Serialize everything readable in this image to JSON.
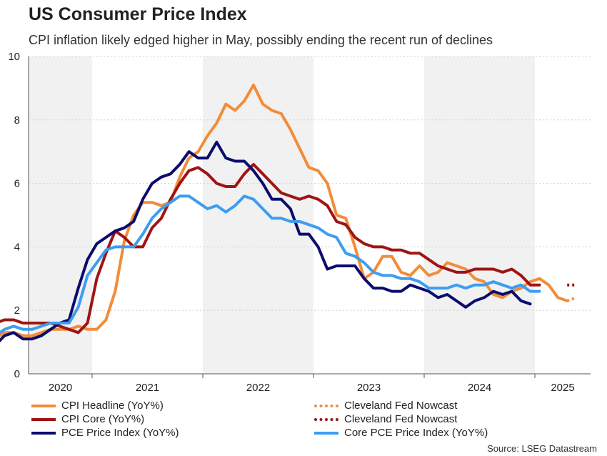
{
  "title": "US Consumer Price Index",
  "subtitle": "CPI inflation likely edged higher in May, possibly ending the recent run of declines",
  "source": "Source: LSEG Datastream",
  "legend": [
    {
      "label": "CPI Headline (YoY%)",
      "color": "#f28c38",
      "style": "solid"
    },
    {
      "label": "CPI Core (YoY%)",
      "color": "#a01414",
      "style": "solid"
    },
    {
      "label": "PCE Price Index (YoY%)",
      "color": "#0c0c6e",
      "style": "solid"
    },
    {
      "label": "Cleveland Fed Nowcast",
      "color": "#f28c38",
      "style": "dotted"
    },
    {
      "label": "Cleveland Fed Nowcast",
      "color": "#a01414",
      "style": "dotted"
    },
    {
      "label": "Core PCE Price Index (YoY%)",
      "color": "#3d9df0",
      "style": "solid"
    }
  ],
  "chart_data": {
    "type": "line",
    "ylim": [
      0,
      10
    ],
    "yticks": [
      0,
      2,
      4,
      6,
      8,
      10
    ],
    "x_start": "2020-01",
    "years": [
      "2020",
      "2021",
      "2022",
      "2023",
      "2024",
      "2025"
    ],
    "shaded_years": [
      "2020",
      "2022",
      "2024"
    ],
    "grid": "horizontal dotted",
    "series": [
      {
        "name": "CPI Headline (YoY%)",
        "color": "#f28c38",
        "start": "2020-01",
        "values": [
          0.7,
          1.1,
          1.3,
          1.3,
          1.2,
          1.2,
          1.3,
          1.4,
          1.4,
          1.4,
          1.5,
          1.4,
          1.4,
          1.7,
          2.6,
          4.2,
          5.0,
          5.4,
          5.4,
          5.3,
          5.4,
          6.2,
          6.8,
          7.0,
          7.5,
          7.9,
          8.5,
          8.3,
          8.6,
          9.1,
          8.5,
          8.3,
          8.2,
          7.7,
          7.1,
          6.5,
          6.4,
          6.0,
          5.0,
          4.9,
          4.0,
          3.0,
          3.2,
          3.7,
          3.7,
          3.2,
          3.1,
          3.4,
          3.1,
          3.2,
          3.5,
          3.4,
          3.3,
          3.0,
          2.9,
          2.5,
          2.4,
          2.6,
          2.7,
          2.9,
          3.0,
          2.8,
          2.4,
          2.3
        ]
      },
      {
        "name": "CPI Core (YoY%)",
        "color": "#a01414",
        "start": "2020-01",
        "values": [
          1.2,
          1.6,
          1.7,
          1.7,
          1.6,
          1.6,
          1.6,
          1.6,
          1.5,
          1.4,
          1.3,
          1.6,
          3.0,
          3.8,
          4.5,
          4.3,
          4.0,
          4.0,
          4.6,
          4.9,
          5.5,
          6.0,
          6.4,
          6.5,
          6.3,
          6.0,
          5.9,
          5.9,
          6.3,
          6.6,
          6.3,
          6.0,
          5.7,
          5.6,
          5.5,
          5.6,
          5.5,
          5.3,
          4.8,
          4.7,
          4.3,
          4.1,
          4.0,
          4.0,
          3.9,
          3.9,
          3.8,
          3.8,
          3.6,
          3.4,
          3.3,
          3.2,
          3.2,
          3.3,
          3.3,
          3.3,
          3.2,
          3.3,
          3.1,
          2.8,
          2.8
        ]
      },
      {
        "name": "PCE Price Index (YoY%)",
        "color": "#0c0c6e",
        "start": "2020-01",
        "values": [
          0.7,
          0.9,
          1.2,
          1.3,
          1.1,
          1.1,
          1.2,
          1.4,
          1.6,
          1.7,
          2.7,
          3.6,
          4.1,
          4.3,
          4.5,
          4.6,
          4.8,
          5.5,
          6.0,
          6.2,
          6.3,
          6.6,
          7.0,
          6.8,
          6.8,
          7.3,
          6.8,
          6.7,
          6.7,
          6.4,
          6.0,
          5.5,
          5.5,
          5.2,
          4.4,
          4.4,
          4.0,
          3.3,
          3.4,
          3.4,
          3.4,
          3.0,
          2.7,
          2.7,
          2.6,
          2.6,
          2.8,
          2.7,
          2.6,
          2.4,
          2.5,
          2.3,
          2.1,
          2.3,
          2.4,
          2.6,
          2.5,
          2.6,
          2.3,
          2.2
        ]
      },
      {
        "name": "Core PCE Price Index (YoY%)",
        "color": "#3d9df0",
        "start": "2020-01",
        "values": [
          1.0,
          1.2,
          1.4,
          1.5,
          1.4,
          1.4,
          1.5,
          1.6,
          1.6,
          1.6,
          2.1,
          3.1,
          3.5,
          3.9,
          4.0,
          4.0,
          4.0,
          4.4,
          4.9,
          5.2,
          5.4,
          5.6,
          5.6,
          5.4,
          5.2,
          5.3,
          5.1,
          5.3,
          5.6,
          5.5,
          5.2,
          4.9,
          4.9,
          4.8,
          4.8,
          4.7,
          4.6,
          4.4,
          4.3,
          3.8,
          3.7,
          3.5,
          3.2,
          3.1,
          3.1,
          3.0,
          3.0,
          2.9,
          2.7,
          2.7,
          2.7,
          2.8,
          2.7,
          2.8,
          2.8,
          2.9,
          2.8,
          2.7,
          2.8,
          2.6,
          2.6
        ]
      },
      {
        "name": "Cleveland Fed Nowcast",
        "color": "#f28c38",
        "style": "dotted",
        "start": "2025-04",
        "values": [
          2.3,
          2.4
        ]
      },
      {
        "name": "Cleveland Fed Nowcast",
        "color": "#a01414",
        "style": "dotted",
        "start": "2025-04",
        "values": [
          2.8,
          2.8
        ]
      }
    ]
  }
}
